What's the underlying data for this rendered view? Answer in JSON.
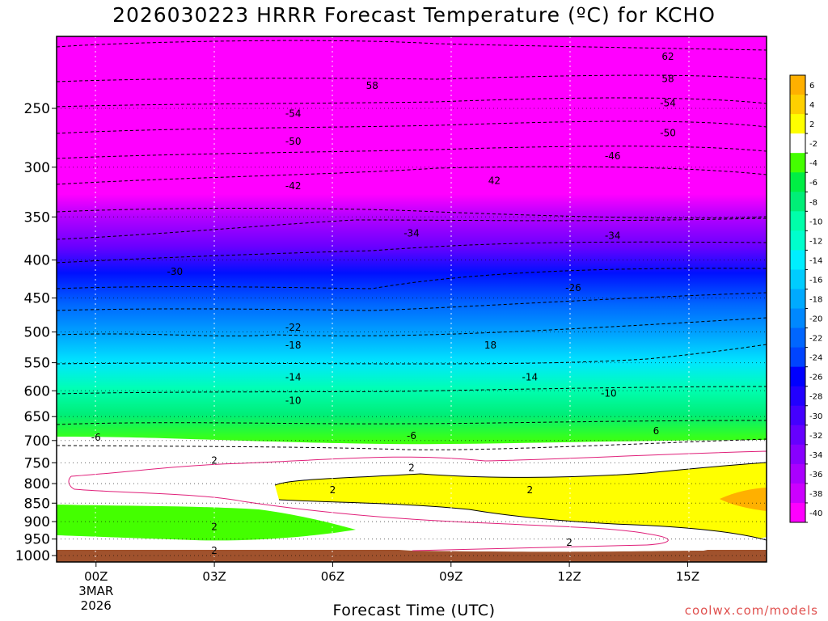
{
  "title": "2026030223 HRRR Forecast Temperature (ºC) for KCHO",
  "credit": "coolwx.com/models",
  "chart_data": {
    "type": "heatmap",
    "title": "2026030223 HRRR Forecast Temperature (ºC) for KCHO",
    "xlabel": "Forecast Time (UTC)",
    "ylabel": "",
    "x_ticks": [
      "00Z",
      "03Z",
      "06Z",
      "09Z",
      "12Z",
      "15Z"
    ],
    "x_tick_hours": [
      0,
      3,
      6,
      9,
      12,
      15
    ],
    "x_sub_label": [
      "3MAR",
      "2026"
    ],
    "xlim": [
      -1,
      17
    ],
    "y_ticks": [
      250,
      300,
      350,
      400,
      450,
      500,
      550,
      600,
      650,
      700,
      750,
      800,
      850,
      900,
      950,
      1000
    ],
    "ylim_hpa": [
      1020,
      200
    ],
    "y_scale": "log (pressure, hPa)",
    "colorbar_levels": [
      -40,
      -38,
      -36,
      -34,
      -32,
      -30,
      -28,
      -26,
      -24,
      -22,
      -20,
      -18,
      -16,
      -14,
      -12,
      -10,
      -8,
      -6,
      -4,
      -2,
      2,
      4,
      6
    ],
    "colorbar_labels": [
      "6",
      "4",
      "2",
      "-2",
      "-4",
      "-6",
      "-8",
      "-10",
      "-12",
      "-14",
      "-16",
      "-18",
      "-20",
      "-22",
      "-24",
      "-26",
      "-28",
      "-30",
      "-32",
      "-34",
      "-36",
      "-38",
      "-40"
    ],
    "colorbar_colors": [
      "#ffb000",
      "#ffd000",
      "#ffff00",
      "#ffffff",
      "#44ff00",
      "#00ee44",
      "#00ee77",
      "#00ffaa",
      "#00ffcc",
      "#00eeff",
      "#00ccff",
      "#00aaff",
      "#0088ff",
      "#0066ff",
      "#0044ff",
      "#0000ff",
      "#2200ff",
      "#4400ff",
      "#6600ff",
      "#8800ff",
      "#aa00ff",
      "#cc00ff",
      "#ff00ff"
    ],
    "contour_labels": [
      {
        "text": "62",
        "hour": 14.5,
        "hpa": 213
      },
      {
        "text": "58",
        "hour": 7.0,
        "hpa": 233
      },
      {
        "text": "58",
        "hour": 14.5,
        "hpa": 228
      },
      {
        "text": "-54",
        "hour": 5.0,
        "hpa": 254
      },
      {
        "text": "-54",
        "hour": 14.5,
        "hpa": 246
      },
      {
        "text": "-50",
        "hour": 5.0,
        "hpa": 277
      },
      {
        "text": "-50",
        "hour": 14.5,
        "hpa": 270
      },
      {
        "text": "-46",
        "hour": 13.1,
        "hpa": 290
      },
      {
        "text": "-42",
        "hour": 5.0,
        "hpa": 318
      },
      {
        "text": "42",
        "hour": 10.1,
        "hpa": 313
      },
      {
        "text": "-34",
        "hour": 8.0,
        "hpa": 368
      },
      {
        "text": "-34",
        "hour": 13.1,
        "hpa": 371
      },
      {
        "text": "-30",
        "hour": 2.0,
        "hpa": 415
      },
      {
        "text": "-26",
        "hour": 12.1,
        "hpa": 436
      },
      {
        "text": "-22",
        "hour": 5.0,
        "hpa": 493
      },
      {
        "text": "-18",
        "hour": 5.0,
        "hpa": 521
      },
      {
        "text": "18",
        "hour": 10.0,
        "hpa": 521
      },
      {
        "text": "-14",
        "hour": 5.0,
        "hpa": 575
      },
      {
        "text": "-14",
        "hour": 11.0,
        "hpa": 575
      },
      {
        "text": "-10",
        "hour": 5.0,
        "hpa": 619
      },
      {
        "text": "-10",
        "hour": 13.0,
        "hpa": 605
      },
      {
        "text": "-6",
        "hour": 0.0,
        "hpa": 693
      },
      {
        "text": "-6",
        "hour": 8.0,
        "hpa": 690
      },
      {
        "text": "6",
        "hour": 14.2,
        "hpa": 680
      },
      {
        "text": "2",
        "hour": 3.0,
        "hpa": 745
      },
      {
        "text": "2",
        "hour": 8.0,
        "hpa": 762
      },
      {
        "text": "2",
        "hour": 6.0,
        "hpa": 816
      },
      {
        "text": "2",
        "hour": 11.0,
        "hpa": 816
      },
      {
        "text": "2",
        "hour": 3.0,
        "hpa": 915
      },
      {
        "text": "2",
        "hour": 12.0,
        "hpa": 960
      },
      {
        "text": "2",
        "hour": 3.0,
        "hpa": 985
      }
    ]
  }
}
